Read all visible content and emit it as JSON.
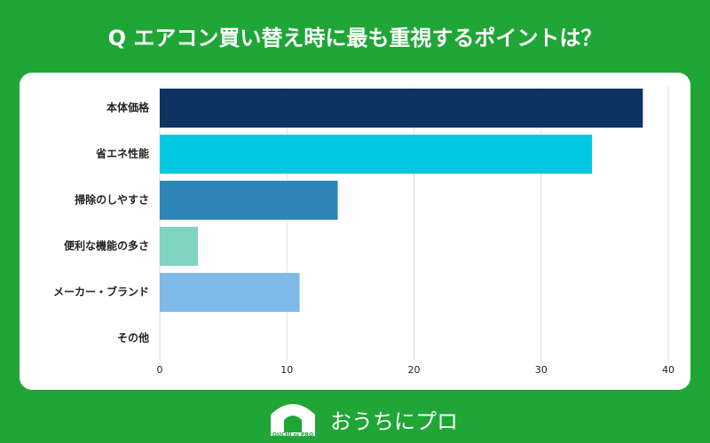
{
  "chart_data": {
    "type": "hbar",
    "title": "Q エアコン買い替え時に最も重視するポイントは？",
    "categories": [
      "本体価格",
      "省エネ性能",
      "掃除のしやすさ",
      "便利な機能の多さ",
      "メーカー・ブランド",
      "その他"
    ],
    "values": [
      38,
      34,
      14,
      3,
      11,
      0
    ],
    "colors": [
      "#0d3461",
      "#00c8e0",
      "#2e86b8",
      "#7fd4c4",
      "#7fb9e8",
      "#7fb9e8"
    ],
    "xlim": [
      0,
      40
    ],
    "xticks": [
      0,
      10,
      20,
      30,
      40
    ],
    "grid": true
  },
  "footer": {
    "logo_text": "OUCHI ni PRO",
    "brand": "おうちにプロ"
  }
}
